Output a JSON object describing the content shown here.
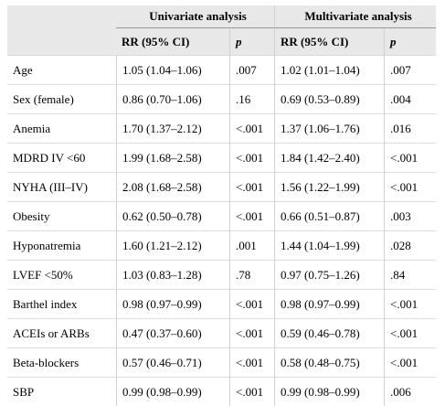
{
  "header": {
    "group_univariate": "Univariate analysis",
    "group_multivariate": "Multivariate analysis",
    "col_rr_u": "RR (95% CI)",
    "col_p_u": "p",
    "col_rr_m": "RR (95% CI)",
    "col_p_m": "p"
  },
  "rows": [
    {
      "label": "Age",
      "u_rr": "1.05 (1.04–1.06)",
      "u_p": ".007",
      "m_rr": "1.02 (1.01–1.04)",
      "m_p": ".007"
    },
    {
      "label": "Sex (female)",
      "u_rr": "0.86 (0.70–1.06)",
      "u_p": ".16",
      "m_rr": "0.69 (0.53–0.89)",
      "m_p": ".004"
    },
    {
      "label": "Anemia",
      "u_rr": "1.70 (1.37–2.12)",
      "u_p": "<.001",
      "m_rr": "1.37 (1.06–1.76)",
      "m_p": ".016"
    },
    {
      "label": "MDRD IV <60",
      "u_rr": "1.99 (1.68–2.58)",
      "u_p": "<.001",
      "m_rr": "1.84 (1.42–2.40)",
      "m_p": "<.001"
    },
    {
      "label": "NYHA (III–IV)",
      "u_rr": "2.08 (1.68–2.58)",
      "u_p": "<.001",
      "m_rr": "1.56 (1.22–1.99)",
      "m_p": "<.001"
    },
    {
      "label": "Obesity",
      "u_rr": "0.62 (0.50–0.78)",
      "u_p": "<.001",
      "m_rr": "0.66 (0.51–0.87)",
      "m_p": ".003"
    },
    {
      "label": "Hyponatremia",
      "u_rr": "1.60 (1.21–2.12)",
      "u_p": ".001",
      "m_rr": "1.44 (1.04–1.99)",
      "m_p": ".028"
    },
    {
      "label": "LVEF <50%",
      "u_rr": "1.03 (0.83–1.28)",
      "u_p": ".78",
      "m_rr": "0.97 (0.75–1.26)",
      "m_p": ".84"
    },
    {
      "label": "Barthel index",
      "u_rr": "0.98 (0.97–0.99)",
      "u_p": "<.001",
      "m_rr": "0.98 (0.97–0.99)",
      "m_p": "<.001"
    },
    {
      "label": "ACEIs or ARBs",
      "u_rr": "0.47 (0.37–0.60)",
      "u_p": "<.001",
      "m_rr": "0.59 (0.46–0.78)",
      "m_p": "<.001"
    },
    {
      "label": "Beta-blockers",
      "u_rr": "0.57 (0.46–0.71)",
      "u_p": "<.001",
      "m_rr": "0.58 (0.48–0.75)",
      "m_p": "<.001"
    },
    {
      "label": "SBP",
      "u_rr": "0.99 (0.98–0.99)",
      "u_p": "<.001",
      "m_rr": "0.99 (0.98–0.99)",
      "m_p": ".006"
    }
  ]
}
